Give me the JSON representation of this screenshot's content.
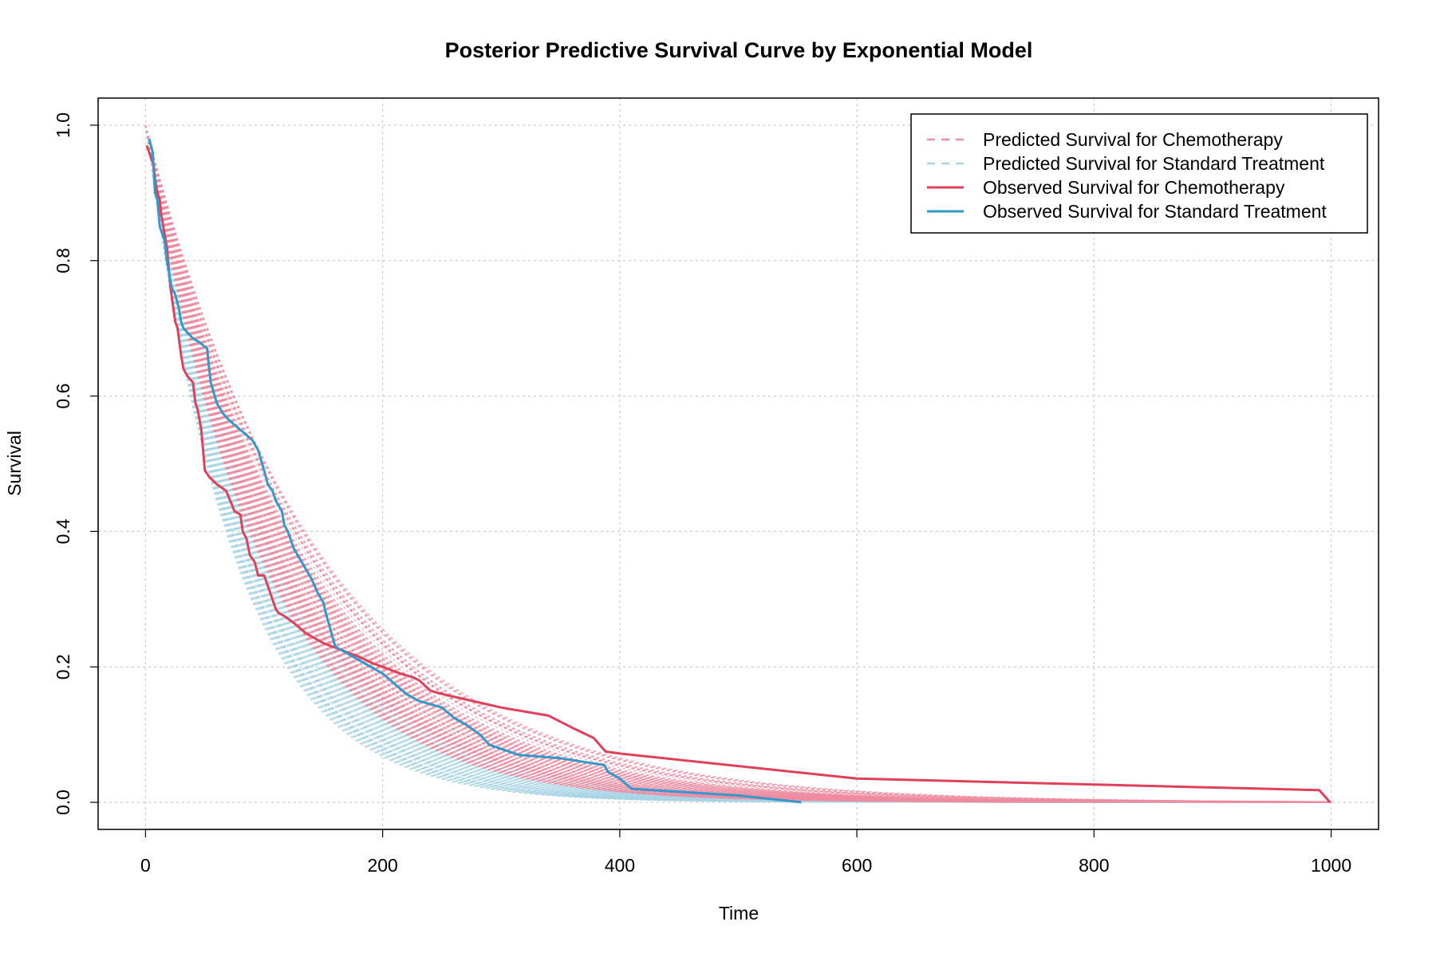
{
  "chart_data": {
    "type": "line",
    "title": "Posterior Predictive Survival Curve by Exponential Model",
    "xlabel": "Time",
    "ylabel": "Survival",
    "xlim": [
      -40,
      1040
    ],
    "ylim": [
      -0.04,
      1.04
    ],
    "x_ticks": [
      0,
      200,
      400,
      600,
      800,
      1000
    ],
    "x_tick_labels": [
      "0",
      "200",
      "400",
      "600",
      "800",
      "1000"
    ],
    "y_ticks": [
      0.0,
      0.2,
      0.4,
      0.6,
      0.8,
      1.0
    ],
    "y_tick_labels": [
      "0.0",
      "0.2",
      "0.4",
      "0.6",
      "0.8",
      "1.0"
    ],
    "grid": true,
    "legend_position": "top-right",
    "colors": {
      "chemo_pred": "#f08ca0",
      "std_pred": "#a8d4e6",
      "chemo_obs": "#e0405a",
      "std_obs": "#3399cc"
    },
    "series": [
      {
        "name": "Predicted Survival for Chemotherapy",
        "style": "dashed",
        "description_of_draws": "posterior predictive exponential survival curves",
        "rate_range": [
          0.0068,
          0.0105
        ],
        "x_range": [
          0,
          1000
        ]
      },
      {
        "name": "Predicted Survival for Standard Treatment",
        "style": "dashed",
        "rate_range": [
          0.0085,
          0.0135
        ],
        "x_range": [
          0,
          1000
        ]
      },
      {
        "name": "Observed Survival for Chemotherapy",
        "style": "solid",
        "x": [
          1,
          7,
          8,
          10,
          12,
          13,
          15,
          18,
          21,
          25,
          27,
          30,
          32,
          35,
          40,
          42,
          44,
          47,
          50,
          52,
          54,
          60,
          68,
          75,
          80,
          82,
          85,
          88,
          92,
          95,
          100,
          105,
          108,
          110,
          112,
          117,
          125,
          135,
          140,
          150,
          165,
          180,
          192,
          200,
          215,
          225,
          231,
          240,
          250,
          270,
          300,
          340,
          360,
          378,
          388,
          400,
          600,
          990,
          999
        ],
        "y": [
          0.97,
          0.94,
          0.92,
          0.9,
          0.89,
          0.87,
          0.85,
          0.82,
          0.76,
          0.71,
          0.7,
          0.66,
          0.64,
          0.63,
          0.62,
          0.59,
          0.58,
          0.55,
          0.49,
          0.485,
          0.48,
          0.47,
          0.46,
          0.43,
          0.425,
          0.4,
          0.39,
          0.365,
          0.355,
          0.335,
          0.335,
          0.31,
          0.295,
          0.285,
          0.28,
          0.275,
          0.265,
          0.25,
          0.245,
          0.235,
          0.225,
          0.215,
          0.205,
          0.2,
          0.19,
          0.185,
          0.18,
          0.165,
          0.16,
          0.152,
          0.14,
          0.128,
          0.11,
          0.095,
          0.075,
          0.072,
          0.035,
          0.018,
          0.0
        ]
      },
      {
        "name": "Observed Survival for Standard Treatment",
        "style": "solid",
        "x": [
          3,
          6,
          8,
          10,
          12,
          14,
          16,
          18,
          20,
          22,
          25,
          28,
          30,
          32,
          40,
          45,
          52,
          53,
          55,
          60,
          65,
          70,
          80,
          90,
          95,
          100,
          103,
          107,
          110,
          115,
          117,
          120,
          125,
          130,
          135,
          140,
          145,
          150,
          152,
          160,
          170,
          180,
          200,
          210,
          220,
          230,
          250,
          260,
          270,
          282,
          290,
          315,
          350,
          387,
          390,
          400,
          410,
          500,
          553
        ],
        "y": [
          0.98,
          0.96,
          0.9,
          0.89,
          0.85,
          0.84,
          0.83,
          0.8,
          0.78,
          0.76,
          0.75,
          0.73,
          0.71,
          0.7,
          0.685,
          0.68,
          0.67,
          0.65,
          0.62,
          0.59,
          0.575,
          0.565,
          0.55,
          0.535,
          0.52,
          0.49,
          0.47,
          0.46,
          0.445,
          0.43,
          0.41,
          0.4,
          0.375,
          0.36,
          0.345,
          0.33,
          0.31,
          0.295,
          0.28,
          0.23,
          0.22,
          0.21,
          0.19,
          0.175,
          0.16,
          0.15,
          0.14,
          0.125,
          0.115,
          0.1,
          0.085,
          0.07,
          0.065,
          0.055,
          0.045,
          0.035,
          0.02,
          0.01,
          0.0
        ]
      }
    ],
    "legend": [
      {
        "label": "Predicted Survival for Chemotherapy",
        "style": "dashed",
        "color_key": "chemo_pred"
      },
      {
        "label": "Predicted Survival for Standard Treatment",
        "style": "dashed",
        "color_key": "std_pred"
      },
      {
        "label": "Observed Survival for Chemotherapy",
        "style": "solid",
        "color_key": "chemo_obs"
      },
      {
        "label": "Observed Survival for Standard Treatment",
        "style": "solid",
        "color_key": "std_obs"
      }
    ]
  }
}
